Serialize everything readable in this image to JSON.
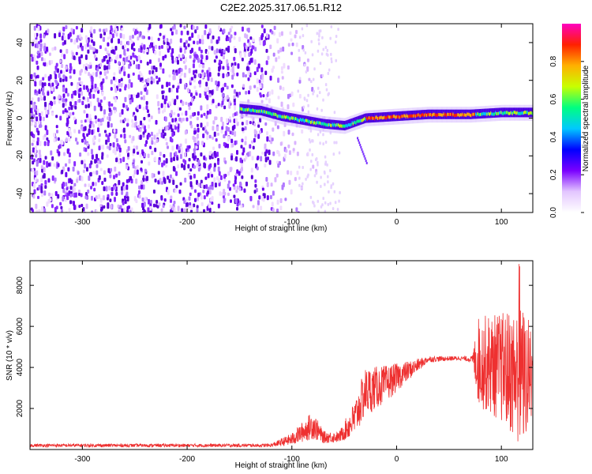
{
  "title": "C2E2.2025.317.06.51.R12",
  "chart_data": [
    {
      "type": "heatmap",
      "name": "spectrogram",
      "xlabel": "Height of straight line (km)",
      "ylabel": "Frequency (Hz)",
      "xlim": [
        -350,
        130
      ],
      "ylim": [
        -50,
        50
      ],
      "xticks": [
        -300,
        -200,
        -100,
        0,
        100
      ],
      "yticks": [
        -40,
        -20,
        0,
        20,
        40
      ],
      "colorbar": {
        "label": "Normalized spectral amplitude",
        "range": [
          0,
          1
        ],
        "ticks": [
          "0.0",
          "0.2",
          "0.4",
          "0.6",
          "0.8"
        ],
        "tick_values": [
          0.0,
          0.2,
          0.4,
          0.6,
          0.8
        ],
        "colormap": [
          "#ffffff",
          "#e3c6ff",
          "#7a00ff",
          "#0000ff",
          "#00c8ff",
          "#00ff80",
          "#c8ff00",
          "#ffb000",
          "#ff2000",
          "#ff00c0"
        ]
      },
      "features": {
        "noise_region_x": [
          -350,
          -110
        ],
        "signal_trace": [
          {
            "x": -150,
            "f": 5
          },
          {
            "x": -130,
            "f": 4
          },
          {
            "x": -110,
            "f": 1
          },
          {
            "x": -90,
            "f": -1
          },
          {
            "x": -70,
            "f": -3
          },
          {
            "x": -50,
            "f": -4
          },
          {
            "x": -40,
            "f": -2
          },
          {
            "x": -30,
            "f": 0
          },
          {
            "x": 0,
            "f": 1
          },
          {
            "x": 30,
            "f": 2
          },
          {
            "x": 70,
            "f": 2
          },
          {
            "x": 100,
            "f": 3
          },
          {
            "x": 130,
            "f": 3
          }
        ]
      }
    },
    {
      "type": "line",
      "name": "snr",
      "xlabel": "Height of straight line (km)",
      "ylabel": "SNR (10 * v/v)",
      "xlim": [
        -350,
        130
      ],
      "ylim": [
        0,
        9200
      ],
      "xticks": [
        -300,
        -200,
        -100,
        0,
        100
      ],
      "yticks": [
        2000,
        4000,
        6000,
        8000
      ],
      "color": "#ee3030",
      "envelope": [
        {
          "x": -350,
          "base": 200,
          "amp": 80
        },
        {
          "x": -120,
          "base": 200,
          "amp": 80
        },
        {
          "x": -100,
          "base": 500,
          "amp": 300
        },
        {
          "x": -80,
          "base": 1200,
          "amp": 700
        },
        {
          "x": -70,
          "base": 600,
          "amp": 300
        },
        {
          "x": -55,
          "base": 600,
          "amp": 250
        },
        {
          "x": -40,
          "base": 1500,
          "amp": 900
        },
        {
          "x": -30,
          "base": 2800,
          "amp": 1200
        },
        {
          "x": -10,
          "base": 3200,
          "amp": 900
        },
        {
          "x": 10,
          "base": 3800,
          "amp": 500
        },
        {
          "x": 30,
          "base": 4400,
          "amp": 150
        },
        {
          "x": 60,
          "base": 4450,
          "amp": 100
        },
        {
          "x": 72,
          "base": 4400,
          "amp": 150
        },
        {
          "x": 78,
          "base": 4300,
          "amp": 2200
        },
        {
          "x": 100,
          "base": 4000,
          "amp": 2700
        },
        {
          "x": 120,
          "base": 3500,
          "amp": 3500
        },
        {
          "x": 130,
          "base": 3500,
          "amp": 2500
        }
      ]
    }
  ]
}
